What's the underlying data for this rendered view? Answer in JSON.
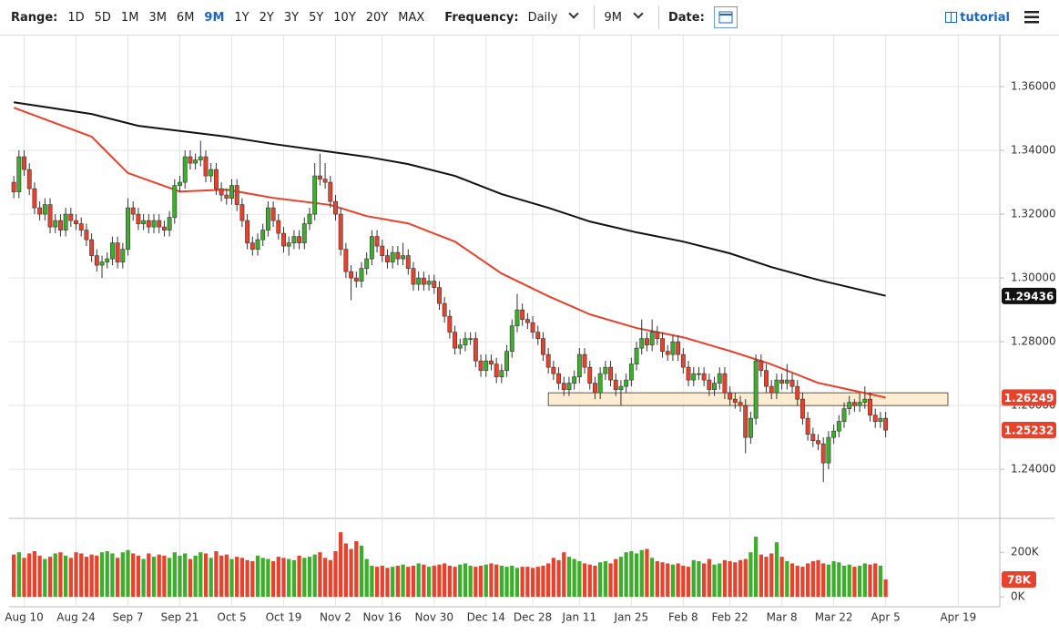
{
  "toolbar": {
    "range_label": "Range:",
    "ranges": [
      "1D",
      "5D",
      "1M",
      "3M",
      "6M",
      "9M",
      "1Y",
      "2Y",
      "3Y",
      "5Y",
      "10Y",
      "20Y",
      "MAX"
    ],
    "active_range": 5,
    "frequency_label": "Frequency:",
    "frequency": "Daily",
    "period": "9M",
    "date_label": "Date:",
    "tutorial": "tutorial"
  },
  "chart_data": {
    "type": "candlestick",
    "xlim": [
      -0.9,
      190
    ],
    "xticks": [
      {
        "value": 2,
        "label": "Aug 10"
      },
      {
        "value": 12,
        "label": "Aug 24"
      },
      {
        "value": 22,
        "label": "Sep 7"
      },
      {
        "value": 32,
        "label": "Sep 21"
      },
      {
        "value": 42,
        "label": "Oct 5"
      },
      {
        "value": 52,
        "label": "Oct 19"
      },
      {
        "value": 62,
        "label": "Nov 2"
      },
      {
        "value": 71,
        "label": "Nov 16"
      },
      {
        "value": 81,
        "label": "Nov 30"
      },
      {
        "value": 91,
        "label": "Dec 14"
      },
      {
        "value": 100,
        "label": "Dec 28"
      },
      {
        "value": 109,
        "label": "Jan 11"
      },
      {
        "value": 119,
        "label": "Jan 25"
      },
      {
        "value": 129,
        "label": "Feb 8"
      },
      {
        "value": 138,
        "label": "Feb 22"
      },
      {
        "value": 148,
        "label": "Mar 8"
      },
      {
        "value": 158,
        "label": "Mar 22"
      },
      {
        "value": 168,
        "label": "Apr 5"
      },
      {
        "value": 182,
        "label": "Apr 19"
      }
    ],
    "ylim": [
      1.2249,
      1.3743
    ],
    "yticks": [
      {
        "value": 1.24,
        "label": "1.24000"
      },
      {
        "value": 1.26,
        "label": "1.26000"
      },
      {
        "value": 1.28,
        "label": "1.28000"
      },
      {
        "value": 1.3,
        "label": "1.30000"
      },
      {
        "value": 1.32,
        "label": "1.32000"
      },
      {
        "value": 1.34,
        "label": "1.34000"
      },
      {
        "value": 1.36,
        "label": "1.36000"
      }
    ],
    "grid": true,
    "up_color": "#3dae2b",
    "down_color": "#e8412c",
    "candles": {
      "x": [
        0,
        1,
        2,
        3,
        4,
        5,
        6,
        7,
        8,
        9,
        10,
        11,
        12,
        13,
        14,
        15,
        16,
        17,
        18,
        19,
        20,
        21,
        22,
        23,
        24,
        25,
        26,
        27,
        28,
        29,
        30,
        31,
        32,
        33,
        34,
        35,
        36,
        37,
        38,
        39,
        40,
        41,
        42,
        43,
        44,
        45,
        46,
        47,
        48,
        49,
        50,
        51,
        52,
        53,
        54,
        55,
        56,
        57,
        58,
        59,
        60,
        61,
        62,
        63,
        64,
        65,
        66,
        67,
        68,
        69,
        70,
        71,
        72,
        73,
        74,
        75,
        76,
        77,
        78,
        79,
        80,
        81,
        82,
        83,
        84,
        85,
        86,
        87,
        88,
        89,
        90,
        91,
        92,
        93,
        94,
        95,
        96,
        97,
        98,
        99,
        100,
        101,
        102,
        103,
        104,
        105,
        106,
        107,
        108,
        109,
        110,
        111,
        112,
        113,
        114,
        115,
        116,
        117,
        118,
        119,
        120,
        121,
        122,
        123,
        124,
        125,
        126,
        127,
        128,
        129,
        130,
        131,
        132,
        133,
        134,
        135,
        136,
        137,
        138,
        139,
        140,
        141,
        142,
        143,
        144,
        145,
        146,
        147,
        148,
        149,
        150,
        151,
        152,
        153,
        154,
        155,
        156,
        157,
        158,
        159,
        160,
        161,
        162,
        163,
        164,
        165,
        166,
        167,
        168
      ],
      "open": [
        1.33,
        1.327,
        1.338,
        1.334,
        1.328,
        1.322,
        1.32,
        1.323,
        1.316,
        1.318,
        1.315,
        1.32,
        1.318,
        1.317,
        1.315,
        1.312,
        1.307,
        1.304,
        1.305,
        1.306,
        1.311,
        1.305,
        1.309,
        1.322,
        1.32,
        1.317,
        1.318,
        1.316,
        1.318,
        1.316,
        1.315,
        1.319,
        1.329,
        1.33,
        1.338,
        1.336,
        1.337,
        1.338,
        1.332,
        1.334,
        1.328,
        1.326,
        1.325,
        1.329,
        1.323,
        1.318,
        1.311,
        1.309,
        1.312,
        1.315,
        1.322,
        1.318,
        1.314,
        1.31,
        1.311,
        1.313,
        1.311,
        1.317,
        1.32,
        1.332,
        1.331,
        1.33,
        1.324,
        1.32,
        1.309,
        1.302,
        1.3,
        1.299,
        1.303,
        1.306,
        1.313,
        1.31,
        1.307,
        1.305,
        1.308,
        1.306,
        1.307,
        1.303,
        1.298,
        1.3,
        1.298,
        1.299,
        1.297,
        1.292,
        1.288,
        1.283,
        1.278,
        1.279,
        1.281,
        1.281,
        1.274,
        1.271,
        1.274,
        1.273,
        1.269,
        1.271,
        1.277,
        1.285,
        1.29,
        1.287,
        1.286,
        1.283,
        1.281,
        1.276,
        1.272,
        1.27,
        1.267,
        1.265,
        1.267,
        1.269,
        1.276,
        1.272,
        1.267,
        1.264,
        1.27,
        1.272,
        1.268,
        1.265,
        1.266,
        1.268,
        1.273,
        1.278,
        1.281,
        1.279,
        1.283,
        1.281,
        1.277,
        1.276,
        1.28,
        1.276,
        1.272,
        1.268,
        1.27,
        1.27,
        1.268,
        1.265,
        1.267,
        1.27,
        1.264,
        1.262,
        1.261,
        1.26,
        1.25,
        1.256,
        1.274,
        1.271,
        1.266,
        1.264,
        1.268,
        1.267,
        1.268,
        1.266,
        1.262,
        1.256,
        1.251,
        1.249,
        1.248,
        1.242,
        1.25,
        1.252,
        1.255,
        1.259,
        1.261,
        1.26,
        1.261,
        1.262,
        1.257,
        1.255,
        1.256
      ],
      "high": [
        1.332,
        1.34,
        1.34,
        1.336,
        1.33,
        1.324,
        1.325,
        1.325,
        1.32,
        1.32,
        1.322,
        1.322,
        1.32,
        1.319,
        1.317,
        1.314,
        1.309,
        1.307,
        1.308,
        1.313,
        1.313,
        1.311,
        1.325,
        1.324,
        1.322,
        1.32,
        1.32,
        1.32,
        1.32,
        1.318,
        1.321,
        1.331,
        1.332,
        1.34,
        1.34,
        1.339,
        1.343,
        1.34,
        1.336,
        1.336,
        1.33,
        1.328,
        1.331,
        1.331,
        1.325,
        1.32,
        1.313,
        1.314,
        1.317,
        1.324,
        1.324,
        1.32,
        1.316,
        1.313,
        1.315,
        1.315,
        1.319,
        1.322,
        1.336,
        1.339,
        1.336,
        1.332,
        1.326,
        1.322,
        1.311,
        1.304,
        1.302,
        1.305,
        1.308,
        1.315,
        1.315,
        1.312,
        1.309,
        1.31,
        1.31,
        1.311,
        1.309,
        1.305,
        1.302,
        1.302,
        1.301,
        1.301,
        1.299,
        1.294,
        1.29,
        1.285,
        1.281,
        1.283,
        1.283,
        1.283,
        1.276,
        1.276,
        1.276,
        1.275,
        1.273,
        1.279,
        1.287,
        1.295,
        1.292,
        1.289,
        1.288,
        1.285,
        1.283,
        1.278,
        1.274,
        1.272,
        1.269,
        1.269,
        1.271,
        1.278,
        1.278,
        1.274,
        1.269,
        1.272,
        1.274,
        1.274,
        1.27,
        1.268,
        1.27,
        1.275,
        1.28,
        1.287,
        1.283,
        1.287,
        1.285,
        1.283,
        1.279,
        1.282,
        1.282,
        1.278,
        1.274,
        1.272,
        1.272,
        1.272,
        1.27,
        1.269,
        1.272,
        1.272,
        1.266,
        1.264,
        1.263,
        1.262,
        1.258,
        1.276,
        1.276,
        1.273,
        1.268,
        1.27,
        1.27,
        1.273,
        1.27,
        1.268,
        1.264,
        1.258,
        1.253,
        1.251,
        1.25,
        1.252,
        1.254,
        1.257,
        1.261,
        1.263,
        1.262,
        1.264,
        1.266,
        1.264,
        1.259,
        1.258,
        1.258
      ],
      "low": [
        1.325,
        1.325,
        1.332,
        1.326,
        1.32,
        1.318,
        1.318,
        1.314,
        1.314,
        1.313,
        1.313,
        1.316,
        1.315,
        1.313,
        1.31,
        1.305,
        1.302,
        1.3,
        1.303,
        1.304,
        1.303,
        1.303,
        1.307,
        1.318,
        1.315,
        1.315,
        1.314,
        1.314,
        1.314,
        1.313,
        1.313,
        1.317,
        1.327,
        1.328,
        1.334,
        1.334,
        1.335,
        1.33,
        1.33,
        1.326,
        1.324,
        1.323,
        1.323,
        1.321,
        1.316,
        1.309,
        1.307,
        1.307,
        1.31,
        1.313,
        1.316,
        1.312,
        1.308,
        1.307,
        1.309,
        1.309,
        1.309,
        1.315,
        1.318,
        1.329,
        1.328,
        1.322,
        1.318,
        1.307,
        1.3,
        1.293,
        1.297,
        1.297,
        1.301,
        1.304,
        1.308,
        1.305,
        1.303,
        1.303,
        1.304,
        1.304,
        1.301,
        1.296,
        1.296,
        1.296,
        1.296,
        1.295,
        1.29,
        1.286,
        1.281,
        1.276,
        1.276,
        1.277,
        1.279,
        1.272,
        1.269,
        1.269,
        1.271,
        1.267,
        1.267,
        1.269,
        1.275,
        1.283,
        1.285,
        1.284,
        1.281,
        1.279,
        1.274,
        1.27,
        1.268,
        1.265,
        1.263,
        1.263,
        1.265,
        1.267,
        1.27,
        1.265,
        1.262,
        1.262,
        1.268,
        1.266,
        1.263,
        1.26,
        1.264,
        1.266,
        1.271,
        1.276,
        1.277,
        1.277,
        1.279,
        1.275,
        1.274,
        1.274,
        1.274,
        1.27,
        1.266,
        1.266,
        1.268,
        1.266,
        1.263,
        1.263,
        1.265,
        1.262,
        1.26,
        1.259,
        1.258,
        1.245,
        1.248,
        1.254,
        1.269,
        1.264,
        1.262,
        1.262,
        1.265,
        1.265,
        1.264,
        1.26,
        1.254,
        1.249,
        1.247,
        1.246,
        1.236,
        1.24,
        1.248,
        1.25,
        1.253,
        1.257,
        1.258,
        1.258,
        1.259,
        1.255,
        1.253,
        1.253,
        1.25
      ],
      "close": [
        1.327,
        1.338,
        1.334,
        1.328,
        1.322,
        1.32,
        1.323,
        1.316,
        1.318,
        1.315,
        1.32,
        1.318,
        1.317,
        1.315,
        1.312,
        1.307,
        1.304,
        1.305,
        1.306,
        1.311,
        1.305,
        1.309,
        1.322,
        1.32,
        1.317,
        1.318,
        1.316,
        1.318,
        1.316,
        1.315,
        1.319,
        1.329,
        1.33,
        1.338,
        1.336,
        1.337,
        1.338,
        1.332,
        1.334,
        1.328,
        1.326,
        1.325,
        1.329,
        1.323,
        1.318,
        1.311,
        1.309,
        1.312,
        1.315,
        1.322,
        1.318,
        1.314,
        1.31,
        1.311,
        1.313,
        1.311,
        1.317,
        1.32,
        1.332,
        1.331,
        1.33,
        1.324,
        1.32,
        1.309,
        1.302,
        1.3,
        1.299,
        1.303,
        1.306,
        1.313,
        1.31,
        1.307,
        1.305,
        1.308,
        1.306,
        1.307,
        1.303,
        1.298,
        1.3,
        1.298,
        1.299,
        1.297,
        1.292,
        1.288,
        1.283,
        1.278,
        1.279,
        1.281,
        1.281,
        1.274,
        1.271,
        1.274,
        1.273,
        1.269,
        1.271,
        1.277,
        1.285,
        1.29,
        1.287,
        1.286,
        1.283,
        1.281,
        1.276,
        1.272,
        1.27,
        1.267,
        1.265,
        1.267,
        1.269,
        1.276,
        1.272,
        1.267,
        1.264,
        1.27,
        1.272,
        1.268,
        1.265,
        1.266,
        1.268,
        1.273,
        1.278,
        1.281,
        1.279,
        1.283,
        1.281,
        1.277,
        1.276,
        1.28,
        1.276,
        1.272,
        1.268,
        1.27,
        1.27,
        1.268,
        1.265,
        1.267,
        1.27,
        1.264,
        1.262,
        1.261,
        1.26,
        1.25,
        1.256,
        1.274,
        1.271,
        1.266,
        1.264,
        1.268,
        1.267,
        1.268,
        1.266,
        1.262,
        1.256,
        1.251,
        1.249,
        1.248,
        1.242,
        1.25,
        1.252,
        1.255,
        1.259,
        1.261,
        1.26,
        1.261,
        1.262,
        1.257,
        1.255,
        1.256,
        1.2523
      ]
    },
    "lines": [
      {
        "color": "#e8412c",
        "x": [
          0,
          15,
          22,
          32,
          41,
          50,
          61,
          68,
          76,
          85,
          94,
          103,
          111,
          120,
          129,
          138,
          146,
          155,
          168
        ],
        "values": [
          1.3534,
          1.3443,
          1.3329,
          1.3271,
          1.3277,
          1.3251,
          1.3229,
          1.3194,
          1.3171,
          1.3114,
          1.3014,
          1.2943,
          1.2886,
          1.2843,
          1.2814,
          1.2771,
          1.2729,
          1.2671,
          1.2625
        ]
      },
      {
        "color": "#111111",
        "x": [
          0,
          15,
          24,
          41,
          50,
          59,
          68,
          76,
          85,
          94,
          103,
          111,
          120,
          129,
          138,
          146,
          155,
          168
        ],
        "values": [
          1.3551,
          1.3514,
          1.3477,
          1.3443,
          1.342,
          1.34,
          1.338,
          1.3357,
          1.332,
          1.3263,
          1.322,
          1.3177,
          1.3143,
          1.3114,
          1.3077,
          1.3034,
          1.2994,
          1.2944
        ]
      }
    ],
    "zone": {
      "x": [
        103,
        180
      ],
      "y": [
        1.26,
        1.264
      ]
    },
    "price_labels": [
      {
        "value": 1.29436,
        "label": "1.29436",
        "color": "#111111"
      },
      {
        "value": 1.26249,
        "label": "1.26249",
        "color": "#e8412c"
      },
      {
        "value": 1.25232,
        "label": "1.25232",
        "color": "#e8412c"
      }
    ],
    "volume": {
      "ylim": [
        -20000,
        340000
      ],
      "yticks": [
        {
          "value": 0,
          "label": "0K"
        },
        {
          "value": 200000,
          "label": "200K"
        }
      ],
      "values": [
        190000,
        200000,
        175000,
        195000,
        205000,
        185000,
        170000,
        180000,
        195000,
        200000,
        185000,
        175000,
        200000,
        195000,
        180000,
        190000,
        185000,
        200000,
        205000,
        195000,
        175000,
        200000,
        210000,
        195000,
        185000,
        170000,
        195000,
        180000,
        190000,
        185000,
        175000,
        200000,
        185000,
        195000,
        170000,
        185000,
        200000,
        195000,
        175000,
        205000,
        185000,
        190000,
        170000,
        180000,
        175000,
        165000,
        160000,
        185000,
        175000,
        170000,
        160000,
        180000,
        175000,
        170000,
        165000,
        185000,
        175000,
        180000,
        190000,
        200000,
        175000,
        165000,
        205000,
        290000,
        240000,
        215000,
        250000,
        230000,
        170000,
        140000,
        135000,
        140000,
        130000,
        135000,
        140000,
        145000,
        135000,
        140000,
        150000,
        145000,
        135000,
        140000,
        145000,
        150000,
        140000,
        135000,
        145000,
        150000,
        140000,
        135000,
        140000,
        145000,
        150000,
        145000,
        140000,
        135000,
        140000,
        130000,
        135000,
        135000,
        130000,
        135000,
        140000,
        150000,
        175000,
        165000,
        200000,
        180000,
        170000,
        160000,
        150000,
        145000,
        140000,
        155000,
        160000,
        150000,
        170000,
        180000,
        200000,
        205000,
        195000,
        210000,
        215000,
        175000,
        160000,
        155000,
        150000,
        145000,
        150000,
        140000,
        135000,
        165000,
        160000,
        150000,
        170000,
        145000,
        150000,
        165000,
        160000,
        155000,
        165000,
        170000,
        200000,
        270000,
        190000,
        180000,
        195000,
        245000,
        180000,
        160000,
        150000,
        140000,
        135000,
        150000,
        160000,
        165000,
        150000,
        145000,
        160000,
        155000,
        140000,
        145000,
        135000,
        140000,
        150000,
        145000,
        150000,
        140000,
        78000
      ],
      "last_label": "78K"
    }
  }
}
